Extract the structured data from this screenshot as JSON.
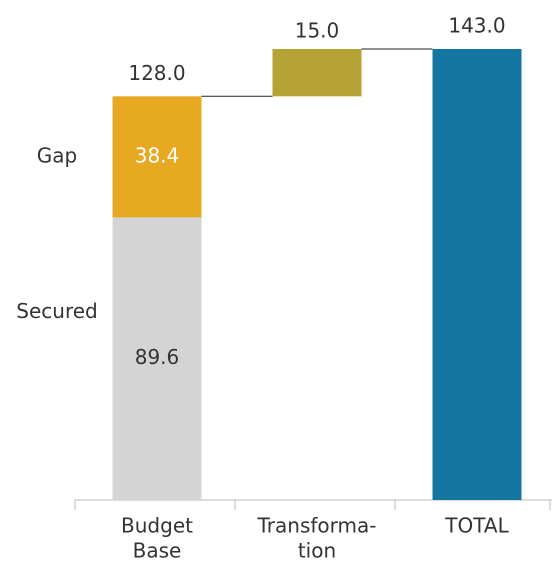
{
  "chart_data": {
    "type": "waterfall",
    "categories": [
      [
        "Budget",
        "Base"
      ],
      [
        "Transforma-",
        "tion"
      ],
      [
        "TOTAL"
      ]
    ],
    "series": [
      {
        "name": "Secured",
        "color": "#d4d4d4",
        "values": [
          89.6,
          null,
          null
        ]
      },
      {
        "name": "Gap",
        "color": "#e8a922",
        "values": [
          38.4,
          null,
          null
        ]
      }
    ],
    "increments": {
      "color": "#b6a336",
      "values": [
        null,
        15.0,
        null
      ],
      "value_labels": [
        null,
        "15.0",
        null
      ]
    },
    "totals": {
      "color": "#1276a0",
      "values": [
        128.0,
        null,
        143.0
      ],
      "value_labels": [
        "128.0",
        null,
        "143.0"
      ]
    },
    "ylim": [
      0,
      143
    ]
  }
}
